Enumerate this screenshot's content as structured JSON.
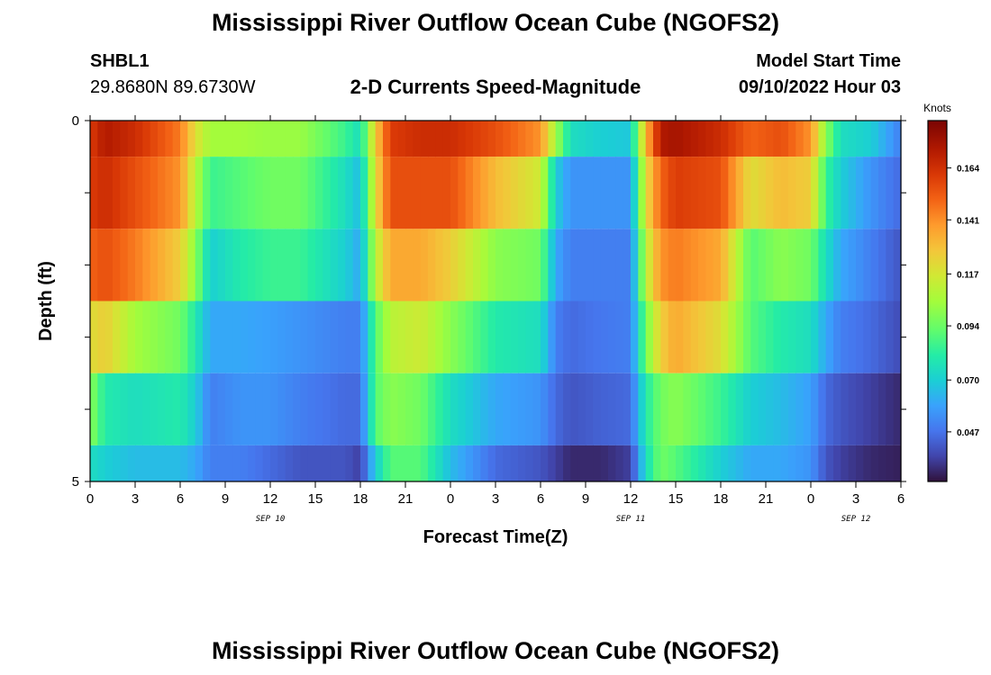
{
  "header": {
    "title": "Mississippi River Outflow Ocean Cube (NGOFS2)",
    "station": "SHBL1",
    "coordinates": "29.8680N  89.6730W",
    "subtitle": "2-D Currents Speed-Magnitude",
    "model_start_label": "Model Start Time",
    "model_start_value": "09/10/2022 Hour 03"
  },
  "footer": {
    "title": "Mississippi River Outflow Ocean Cube (NGOFS2)"
  },
  "chart_data": {
    "type": "heatmap",
    "title": "2-D Currents Speed-Magnitude",
    "xlabel": "Forecast Time(Z)",
    "ylabel": "Depth (ft)",
    "x_tick_labels": [
      "0",
      "3",
      "6",
      "9",
      "12",
      "15",
      "18",
      "21",
      "0",
      "3",
      "6",
      "9",
      "12",
      "15",
      "18",
      "21",
      "0",
      "3",
      "6"
    ],
    "date_labels": [
      {
        "text": "SEP 10",
        "at_hour": 12
      },
      {
        "text": "SEP 11",
        "at_hour": 36
      },
      {
        "text": "SEP 12",
        "at_hour": 51
      }
    ],
    "y_tick_labels": [
      {
        "value": 0,
        "text": "0"
      },
      {
        "value": 5,
        "text": "5"
      }
    ],
    "x_range_hours": [
      0,
      54
    ],
    "y_range_ft": [
      0,
      5
    ],
    "colorbar": {
      "label": "Knots",
      "ticks": [
        0.047,
        0.07,
        0.094,
        0.117,
        0.141,
        0.164
      ],
      "range": [
        0.025,
        0.185
      ]
    },
    "depth_layer_edges_ft": [
      0,
      0.5,
      1.5,
      2.5,
      3.5,
      4.5,
      5
    ],
    "time_anchor_hours": [
      0,
      1,
      3,
      6,
      7,
      8,
      10,
      12,
      14,
      17,
      18,
      19,
      20,
      22,
      24,
      27,
      30,
      31,
      32,
      34,
      36,
      37,
      38,
      39,
      42,
      44,
      46,
      48,
      49,
      50,
      52,
      54
    ],
    "layers_speed_knots": [
      [
        0.16,
        0.172,
        0.165,
        0.145,
        0.12,
        0.105,
        0.105,
        0.103,
        0.103,
        0.085,
        0.075,
        0.125,
        0.16,
        0.165,
        0.165,
        0.155,
        0.14,
        0.105,
        0.075,
        0.07,
        0.068,
        0.13,
        0.172,
        0.175,
        0.165,
        0.15,
        0.155,
        0.14,
        0.1,
        0.075,
        0.07,
        0.05
      ],
      [
        0.16,
        0.165,
        0.155,
        0.14,
        0.11,
        0.085,
        0.09,
        0.095,
        0.095,
        0.075,
        0.065,
        0.12,
        0.155,
        0.155,
        0.155,
        0.13,
        0.115,
        0.07,
        0.055,
        0.055,
        0.055,
        0.12,
        0.15,
        0.16,
        0.155,
        0.12,
        0.13,
        0.125,
        0.085,
        0.07,
        0.055,
        0.045
      ],
      [
        0.15,
        0.155,
        0.145,
        0.125,
        0.1,
        0.07,
        0.08,
        0.085,
        0.085,
        0.07,
        0.06,
        0.11,
        0.135,
        0.135,
        0.125,
        0.1,
        0.095,
        0.06,
        0.05,
        0.05,
        0.05,
        0.11,
        0.14,
        0.145,
        0.135,
        0.09,
        0.1,
        0.095,
        0.075,
        0.06,
        0.05,
        0.04
      ],
      [
        0.12,
        0.125,
        0.105,
        0.095,
        0.08,
        0.06,
        0.06,
        0.058,
        0.055,
        0.05,
        0.05,
        0.09,
        0.11,
        0.115,
        0.1,
        0.08,
        0.075,
        0.05,
        0.045,
        0.048,
        0.05,
        0.095,
        0.125,
        0.135,
        0.12,
        0.09,
        0.08,
        0.075,
        0.06,
        0.05,
        0.045,
        0.038
      ],
      [
        0.1,
        0.08,
        0.075,
        0.08,
        0.07,
        0.05,
        0.055,
        0.055,
        0.05,
        0.045,
        0.045,
        0.09,
        0.1,
        0.095,
        0.075,
        0.06,
        0.055,
        0.045,
        0.04,
        0.043,
        0.045,
        0.08,
        0.095,
        0.1,
        0.085,
        0.07,
        0.065,
        0.058,
        0.045,
        0.04,
        0.035,
        0.03
      ],
      [
        0.075,
        0.07,
        0.065,
        0.065,
        0.06,
        0.05,
        0.05,
        0.045,
        0.04,
        0.04,
        0.035,
        0.07,
        0.09,
        0.09,
        0.065,
        0.045,
        0.04,
        0.035,
        0.03,
        0.03,
        0.035,
        0.075,
        0.095,
        0.09,
        0.07,
        0.06,
        0.06,
        0.055,
        0.04,
        0.035,
        0.03,
        0.028
      ]
    ]
  }
}
